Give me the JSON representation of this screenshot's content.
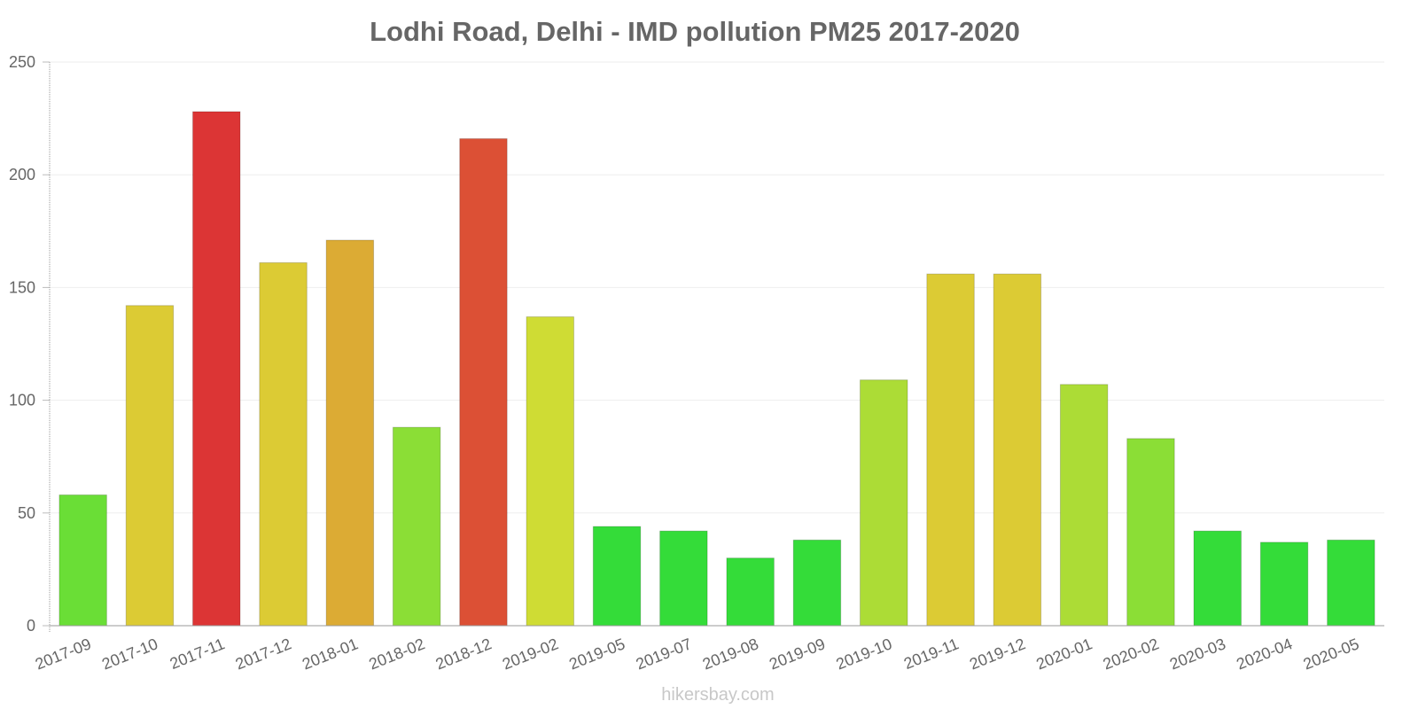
{
  "footer": "hikersbay.com",
  "chart_data": {
    "type": "bar",
    "title": "Lodhi Road, Delhi - IMD pollution PM25 2017-2020",
    "xlabel": "",
    "ylabel": "",
    "ylim": [
      0,
      250
    ],
    "yticks": [
      "0",
      "50",
      "100",
      "150",
      "200",
      "250"
    ],
    "grid": true,
    "categories": [
      "2017-09",
      "2017-10",
      "2017-11",
      "2017-12",
      "2018-01",
      "2018-02",
      "2018-12",
      "2019-02",
      "2019-05",
      "2019-07",
      "2019-08",
      "2019-09",
      "2019-10",
      "2019-11",
      "2019-12",
      "2020-01",
      "2020-02",
      "2020-03",
      "2020-04",
      "2020-05"
    ],
    "values": [
      58,
      142,
      228,
      161,
      171,
      88,
      216,
      137,
      44,
      42,
      30,
      38,
      109,
      156,
      156,
      107,
      83,
      42,
      37,
      38
    ],
    "colors": [
      "#6ade36",
      "#dccb34",
      "#dc3535",
      "#dccb34",
      "#dcab34",
      "#8bde36",
      "#dc5035",
      "#cfdc34",
      "#34dc39",
      "#34dc39",
      "#34dc39",
      "#34dc39",
      "#acdc36",
      "#dccb34",
      "#dccb34",
      "#acdc36",
      "#8bde36",
      "#34dc39",
      "#34dc39",
      "#34dc39"
    ]
  }
}
